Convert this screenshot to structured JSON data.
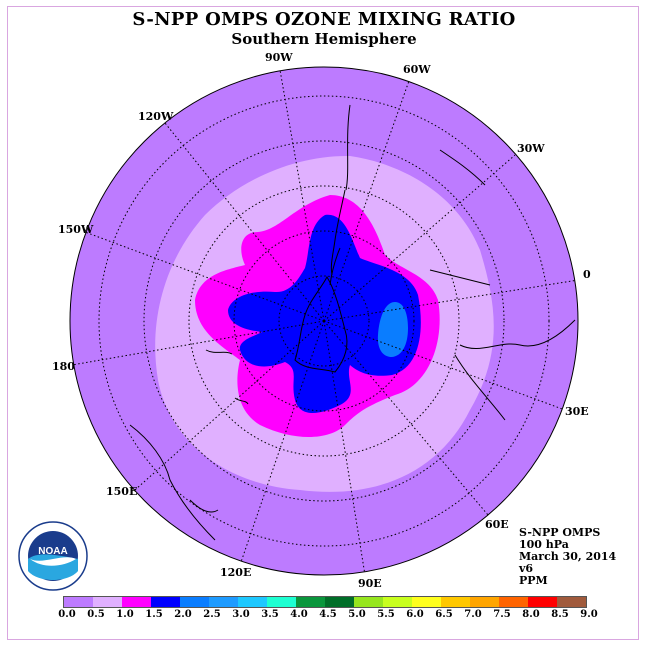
{
  "title": "S-NPP OMPS OZONE MIXING RATIO",
  "subtitle": "Southern Hemisphere",
  "map": {
    "projection": "south polar stereographic",
    "longitude_labels": [
      "90W",
      "60W",
      "30W",
      "0",
      "30E",
      "60E",
      "90E",
      "120E",
      "150E",
      "180",
      "150W",
      "120W"
    ],
    "colors": {
      "ocean_outer": "#bd7bff",
      "ring_0_5_1_0": "#e0b0ff",
      "ring_1_0_1_5": "#ff00ff",
      "ring_1_5_2_0": "#0000ff",
      "ring_2_0_2_5": "#0a7dff"
    }
  },
  "info": {
    "instrument": "S-NPP OMPS",
    "level": "100 hPa",
    "date": "March 30, 2014",
    "version": "v6",
    "units": "PPM"
  },
  "logo": {
    "icon": "noaa-logo-icon",
    "text": "NOAA"
  },
  "colorbar": {
    "ticks": [
      "0.0",
      "0.5",
      "1.0",
      "1.5",
      "2.0",
      "2.5",
      "3.0",
      "3.5",
      "4.0",
      "4.5",
      "5.0",
      "5.5",
      "6.0",
      "6.5",
      "7.0",
      "7.5",
      "8.0",
      "8.5",
      "9.0"
    ],
    "colors": [
      "#bd7bff",
      "#e0b0ff",
      "#ff00ff",
      "#0000ff",
      "#0a7dff",
      "#1e9bff",
      "#1ec8ff",
      "#1effd2",
      "#0a963c",
      "#006e28",
      "#96e61e",
      "#c8ff1e",
      "#ffff1e",
      "#ffc800",
      "#ffa500",
      "#ff6400",
      "#ff0000",
      "#a05a3c"
    ]
  }
}
